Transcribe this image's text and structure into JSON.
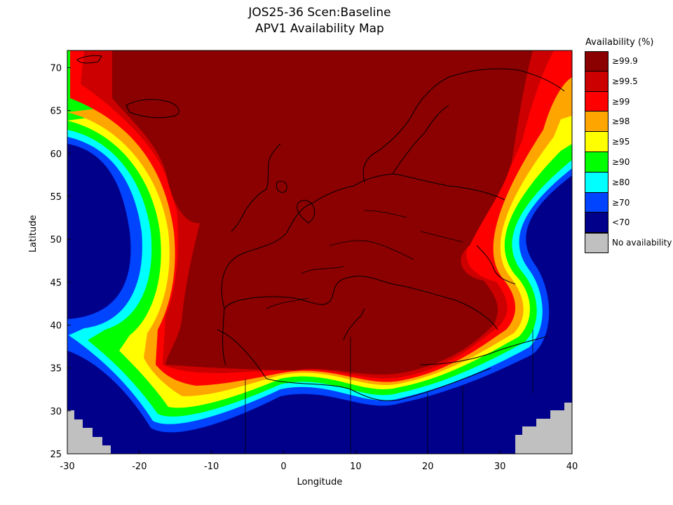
{
  "title": "JOS25-36 Scen:Baseline",
  "subtitle": "APV1 Availability Map",
  "x_axis": {
    "label": "Longitude",
    "min": -30,
    "max": 40,
    "ticks": [
      -30,
      -20,
      -10,
      0,
      10,
      20,
      30,
      40
    ]
  },
  "y_axis": {
    "label": "Latitude",
    "min": 25,
    "max": 72,
    "ticks": [
      25,
      30,
      35,
      40,
      45,
      50,
      55,
      60,
      65,
      70
    ]
  },
  "legend": {
    "title": "Availability (%)",
    "items": [
      {
        "label": "≥99.9",
        "color": "#8b0000"
      },
      {
        "label": "≥99.5",
        "color": "#cc0000"
      },
      {
        "label": "≥99",
        "color": "#ff0000"
      },
      {
        "label": "≥98",
        "color": "#ffa500"
      },
      {
        "label": "≥95",
        "color": "#ffff00"
      },
      {
        "label": "≥90",
        "color": "#00ff00"
      },
      {
        "label": "≥80",
        "color": "#00ffff"
      },
      {
        "label": "≥70",
        "color": "#0044ff"
      },
      {
        "label": "<70",
        "color": "#00008b"
      },
      {
        "label": "No availability",
        "color": "#c0c0c0"
      }
    ]
  },
  "colors": {
    "band_99_9": "#8b0000",
    "band_99_5": "#cc0000",
    "band_99": "#ff0000",
    "band_98": "#ffa500",
    "band_95": "#ffff00",
    "band_90": "#00ff00",
    "band_80": "#00ffff",
    "band_70": "#0044ff",
    "band_lt70": "#00008b",
    "no_availability": "#c0c0c0"
  }
}
